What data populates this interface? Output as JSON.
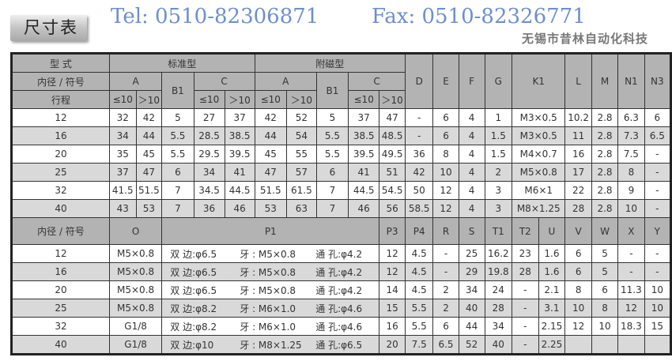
{
  "title": "尺寸表",
  "watermarks": {
    "tel": "Tel: 0510-82306871",
    "fax": "Fax: 0510-82326771",
    "company": "无锡市昔林自动化科技"
  },
  "top": {
    "h_type": "型 式",
    "h_std": "标准型",
    "h_mag": "附磁型",
    "h_bore": "内径 / 符号",
    "h_stroke": "行程",
    "A": "A",
    "B1": "B1",
    "C": "C",
    "le10": "≤10",
    "gt10": "＞10",
    "cols": [
      "D",
      "E",
      "F",
      "G",
      "K1",
      "L",
      "M",
      "N1",
      "N3"
    ],
    "rows": [
      [
        "12",
        "32",
        "42",
        "5",
        "27",
        "37",
        "42",
        "52",
        "5",
        "37",
        "47",
        "-",
        "6",
        "4",
        "1",
        "M3×0.5",
        "10.2",
        "2.8",
        "6.3",
        "6"
      ],
      [
        "16",
        "34",
        "44",
        "5.5",
        "28.5",
        "38.5",
        "44",
        "54",
        "5.5",
        "38.5",
        "48.5",
        "-",
        "6",
        "4",
        "1.5",
        "M3×0.5",
        "11",
        "2.8",
        "7.3",
        "6.5"
      ],
      [
        "20",
        "35",
        "45",
        "5.5",
        "29.5",
        "39.5",
        "45",
        "55",
        "5.5",
        "39.5",
        "49.5",
        "36",
        "8",
        "4",
        "1.5",
        "M4×0.7",
        "16",
        "2.8",
        "7.5",
        "-"
      ],
      [
        "25",
        "37",
        "47",
        "6",
        "34",
        "41",
        "47",
        "57",
        "6",
        "41",
        "51",
        "42",
        "10",
        "4",
        "2",
        "M5×0.8",
        "17",
        "2.8",
        "8",
        "-"
      ],
      [
        "32",
        "41.5",
        "51.5",
        "7",
        "34.5",
        "44.5",
        "51.5",
        "61.5",
        "7",
        "44.5",
        "54.5",
        "50",
        "12",
        "4",
        "3",
        "M6×1",
        "22",
        "2.8",
        "9",
        "-"
      ],
      [
        "40",
        "43",
        "53",
        "7",
        "36",
        "46",
        "53",
        "63",
        "7",
        "46",
        "56",
        "58.5",
        "12",
        "4",
        "3",
        "M8×1.25",
        "28",
        "2.8",
        "10",
        "-"
      ]
    ]
  },
  "bottom": {
    "h_bore": "内径 / 符号",
    "cols": [
      "O",
      "P1",
      "P3",
      "P4",
      "R",
      "S",
      "T1",
      "T2",
      "U",
      "V",
      "W",
      "X",
      "Y"
    ],
    "rows": [
      {
        "bore": "12",
        "O": "M5×0.8",
        "p1": [
          "双 边:φ6.5",
          "牙 : M5×0.8",
          "通 孔:φ4.2"
        ],
        "rest": [
          "12",
          "4.5",
          "-",
          "25",
          "16.2",
          "23",
          "1.6",
          "6",
          "5",
          "-",
          "-"
        ]
      },
      {
        "bore": "16",
        "O": "M5×0.8",
        "p1": [
          "双 边:φ6.5",
          "牙 : M5×0.8",
          "通 孔:φ4.2"
        ],
        "rest": [
          "12",
          "4.5",
          "-",
          "29",
          "19.8",
          "28",
          "1.6",
          "6",
          "5",
          "-",
          "-"
        ]
      },
      {
        "bore": "20",
        "O": "M5×0.8",
        "p1": [
          "双 边:φ6.5",
          "牙 : M5×0.8",
          "通 孔:φ4.2"
        ],
        "rest": [
          "14",
          "4.5",
          "2",
          "34",
          "24",
          "-",
          "2.1",
          "8",
          "6",
          "11.3",
          "10"
        ]
      },
      {
        "bore": "25",
        "O": "M5×0.8",
        "p1": [
          "双 边:φ8.2",
          "牙 : M6×1.0",
          "通 孔:φ4.6"
        ],
        "rest": [
          "15",
          "5.5",
          "2",
          "40",
          "28",
          "-",
          "3.1",
          "10",
          "8",
          "12",
          "10"
        ]
      },
      {
        "bore": "32",
        "O": "G1/8",
        "p1": [
          "双 边:φ8.2",
          "牙 : M6×1.0",
          "通 孔:φ4.6"
        ],
        "rest": [
          "16",
          "5.5",
          "6",
          "44",
          "34",
          "-",
          "2.15",
          "12",
          "10",
          "18.3",
          "15"
        ]
      },
      {
        "bore": "40",
        "O": "G1/8",
        "p1": [
          "双 边:φ10",
          "牙 : M8×1.25",
          "通 孔:φ6.5"
        ],
        "rest": [
          "20",
          "7.5",
          "6.5",
          "52",
          "40",
          "-",
          "2.25",
          "",
          "",
          "",
          ""
        ]
      }
    ]
  }
}
